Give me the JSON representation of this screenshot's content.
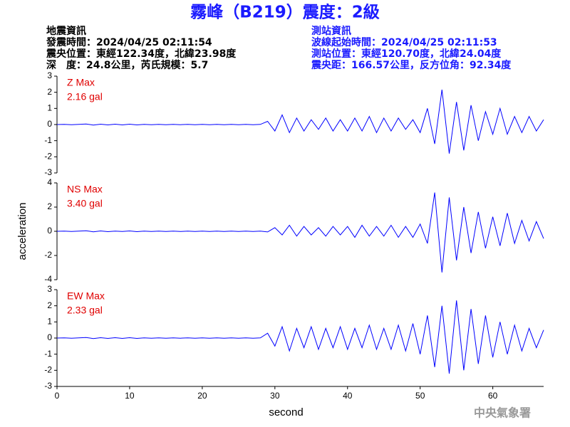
{
  "header": {
    "title": "霧峰（B219）震度：2級",
    "quake_info": [
      "地震資訊",
      "發震時間：2024/04/25 02:11:54",
      "震央位置：東經122.34度，北緯23.98度",
      "深　度：24.8公里，芮氏規模：5.7"
    ],
    "station_info": [
      "測站資訊",
      "波線起始時間：2024/04/25 02:11:53",
      "測站位置：東經120.70度，北緯24.04度",
      "震央距：166.57公里，反方位角：92.34度"
    ]
  },
  "footer": "中央氣象署",
  "chart_data": [
    {
      "type": "line",
      "max_label": "Z Max",
      "max_value_label": "2.16 gal",
      "color": "#0000ff",
      "xlim": [
        0,
        67
      ],
      "ylim": [
        -3,
        3
      ],
      "yticks": [
        -3,
        -2,
        -1,
        0,
        1,
        2,
        3
      ],
      "x": [
        0,
        1,
        2,
        3,
        4,
        5,
        6,
        7,
        8,
        9,
        10,
        11,
        12,
        13,
        14,
        15,
        16,
        17,
        18,
        19,
        20,
        21,
        22,
        23,
        24,
        25,
        26,
        27,
        28,
        29,
        30,
        31,
        32,
        33,
        34,
        35,
        36,
        37,
        38,
        39,
        40,
        41,
        42,
        43,
        44,
        45,
        46,
        47,
        48,
        49,
        50,
        51,
        52,
        53,
        54,
        55,
        56,
        57,
        58,
        59,
        60,
        61,
        62,
        63,
        64,
        65,
        66,
        67
      ],
      "values": [
        0,
        0.01,
        -0.01,
        0.01,
        0.03,
        -0.03,
        0.02,
        -0.02,
        0.02,
        -0.02,
        0.02,
        -0.02,
        0.01,
        -0.01,
        0.01,
        -0.01,
        0.01,
        -0.01,
        0.01,
        -0.01,
        0.01,
        -0.01,
        0.01,
        -0.01,
        0.01,
        -0.01,
        0.01,
        -0.01,
        0.01,
        0.2,
        -0.4,
        0.6,
        -0.5,
        0.4,
        -0.4,
        0.3,
        -0.3,
        0.4,
        -0.4,
        0.3,
        -0.4,
        0.4,
        -0.4,
        0.5,
        -0.5,
        0.4,
        -0.4,
        0.4,
        -0.3,
        0.3,
        -0.5,
        1.0,
        -1.2,
        2.16,
        -1.8,
        1.4,
        -1.6,
        1.2,
        -1.0,
        0.8,
        -0.6,
        1.0,
        -0.6,
        0.5,
        -0.5,
        0.5,
        -0.4,
        0.3
      ]
    },
    {
      "type": "line",
      "max_label": "NS Max",
      "max_value_label": "3.40 gal",
      "color": "#0000ff",
      "ylabel": "acceleration",
      "xlim": [
        0,
        67
      ],
      "ylim": [
        -4,
        4
      ],
      "yticks": [
        -4,
        -2,
        0,
        2,
        4
      ],
      "x": [
        0,
        1,
        2,
        3,
        4,
        5,
        6,
        7,
        8,
        9,
        10,
        11,
        12,
        13,
        14,
        15,
        16,
        17,
        18,
        19,
        20,
        21,
        22,
        23,
        24,
        25,
        26,
        27,
        28,
        29,
        30,
        31,
        32,
        33,
        34,
        35,
        36,
        37,
        38,
        39,
        40,
        41,
        42,
        43,
        44,
        45,
        46,
        47,
        48,
        49,
        50,
        51,
        52,
        53,
        54,
        55,
        56,
        57,
        58,
        59,
        60,
        61,
        62,
        63,
        64,
        65,
        66,
        67
      ],
      "values": [
        0,
        0.02,
        -0.02,
        0.02,
        0.04,
        -0.04,
        0.03,
        -0.03,
        0.02,
        -0.02,
        0.03,
        -0.03,
        0.02,
        -0.02,
        0.02,
        -0.02,
        0.02,
        -0.02,
        0.02,
        -0.02,
        0.02,
        -0.02,
        0.02,
        -0.02,
        0.02,
        -0.02,
        0.02,
        -0.02,
        0.02,
        -0.05,
        0.3,
        -0.3,
        0.5,
        -0.4,
        0.4,
        -0.3,
        0.3,
        -0.4,
        0.4,
        -0.3,
        0.4,
        -0.5,
        0.5,
        -0.4,
        0.4,
        -0.4,
        0.5,
        -0.5,
        0.4,
        -0.5,
        0.6,
        -1.0,
        3.2,
        -3.4,
        2.8,
        -2.4,
        2.0,
        -1.8,
        1.6,
        -1.4,
        1.2,
        -1.2,
        1.5,
        -1.0,
        0.9,
        -0.8,
        0.8,
        -0.6
      ]
    },
    {
      "type": "line",
      "max_label": "EW Max",
      "max_value_label": "2.33 gal",
      "color": "#0000ff",
      "xlabel": "second",
      "xlim": [
        0,
        67
      ],
      "ylim": [
        -3,
        3
      ],
      "yticks": [
        -3,
        -2,
        -1,
        0,
        1,
        2,
        3
      ],
      "xticks": [
        0,
        10,
        20,
        30,
        40,
        50,
        60
      ],
      "x": [
        0,
        1,
        2,
        3,
        4,
        5,
        6,
        7,
        8,
        9,
        10,
        11,
        12,
        13,
        14,
        15,
        16,
        17,
        18,
        19,
        20,
        21,
        22,
        23,
        24,
        25,
        26,
        27,
        28,
        29,
        30,
        31,
        32,
        33,
        34,
        35,
        36,
        37,
        38,
        39,
        40,
        41,
        42,
        43,
        44,
        45,
        46,
        47,
        48,
        49,
        50,
        51,
        52,
        53,
        54,
        55,
        56,
        57,
        58,
        59,
        60,
        61,
        62,
        63,
        64,
        65,
        66,
        67
      ],
      "values": [
        0,
        0.01,
        -0.01,
        0.01,
        0.03,
        -0.03,
        0.02,
        -0.02,
        0.02,
        -0.02,
        0.02,
        -0.02,
        0.01,
        -0.01,
        0.01,
        -0.01,
        0.01,
        -0.01,
        0.01,
        -0.01,
        0.01,
        -0.01,
        0.01,
        -0.01,
        0.01,
        -0.01,
        0.01,
        -0.01,
        0.01,
        0.3,
        -0.5,
        0.7,
        -0.8,
        0.6,
        -0.6,
        0.7,
        -0.7,
        0.6,
        -0.6,
        0.7,
        -0.7,
        0.6,
        -0.6,
        0.8,
        -0.7,
        0.6,
        -0.7,
        0.8,
        -0.8,
        0.9,
        -1.0,
        1.4,
        -1.8,
        2.0,
        -2.2,
        2.33,
        -2.0,
        1.8,
        -1.6,
        1.4,
        -1.2,
        1.0,
        -1.0,
        0.8,
        -0.8,
        0.6,
        -0.6,
        0.5
      ]
    }
  ]
}
